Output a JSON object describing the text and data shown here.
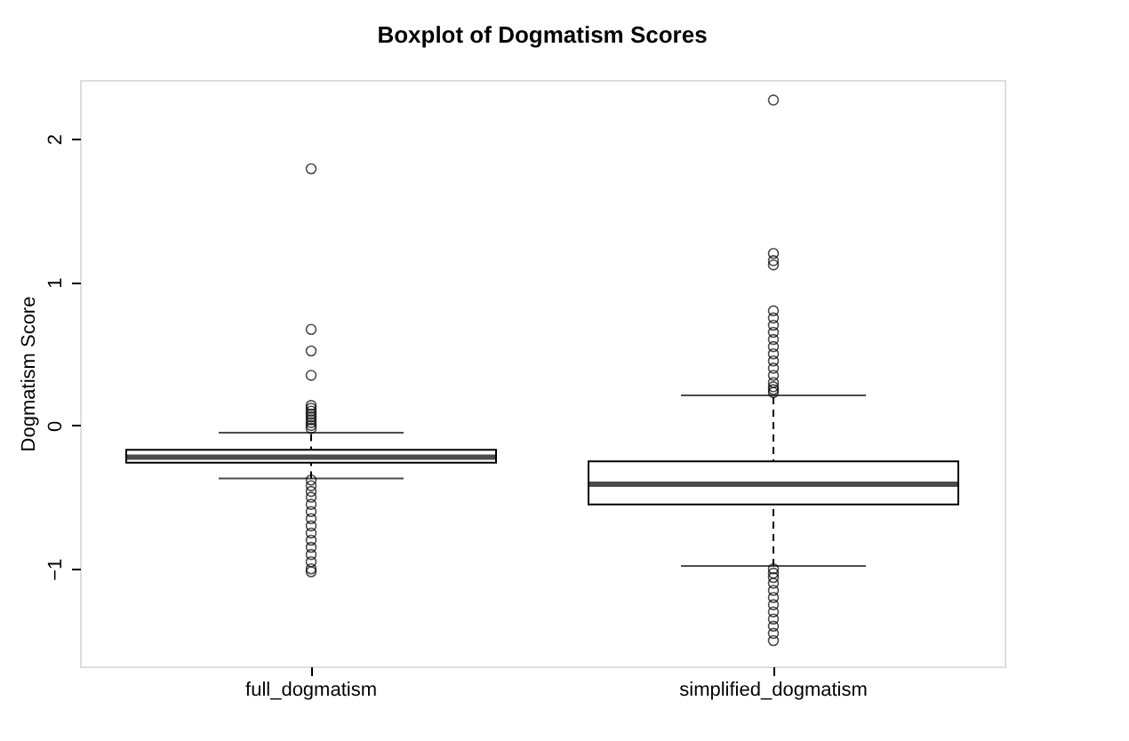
{
  "chart_data": {
    "type": "box",
    "title": "Boxplot of Dogmatism Scores",
    "ylabel": "Dogmatism Score",
    "categories": [
      "full_dogmatism",
      "simplified_dogmatism"
    ],
    "boxes": [
      {
        "low": -0.37,
        "q1": -0.26,
        "median": -0.22,
        "q3": -0.17,
        "high": -0.05,
        "outliers": [
          1.79,
          0.67,
          0.52,
          0.35,
          0.14,
          0.12,
          0.1,
          0.08,
          0.06,
          0.04,
          0.02,
          0,
          -0.02,
          -0.38,
          -0.42,
          -0.46,
          -0.5,
          -0.55,
          -0.6,
          -0.65,
          -0.7,
          -0.75,
          -0.8,
          -0.85,
          -0.9,
          -0.95,
          -1.0,
          -1.02
        ]
      },
      {
        "low": -0.98,
        "q1": -0.55,
        "median": -0.41,
        "q3": -0.25,
        "high": 0.21,
        "outliers": [
          2.27,
          1.2,
          1.15,
          1.12,
          0.8,
          0.75,
          0.7,
          0.65,
          0.6,
          0.55,
          0.5,
          0.45,
          0.4,
          0.35,
          0.3,
          0.27,
          0.25,
          0.23,
          -1.0,
          -1.03,
          -1.06,
          -1.1,
          -1.15,
          -1.2,
          -1.25,
          -1.3,
          -1.35,
          -1.4,
          -1.45,
          -1.5
        ]
      }
    ],
    "color": "#000000",
    "ylim": [
      -1.68,
      2.41
    ],
    "yticks": [
      -1,
      0,
      1,
      2
    ],
    "grid": false
  }
}
